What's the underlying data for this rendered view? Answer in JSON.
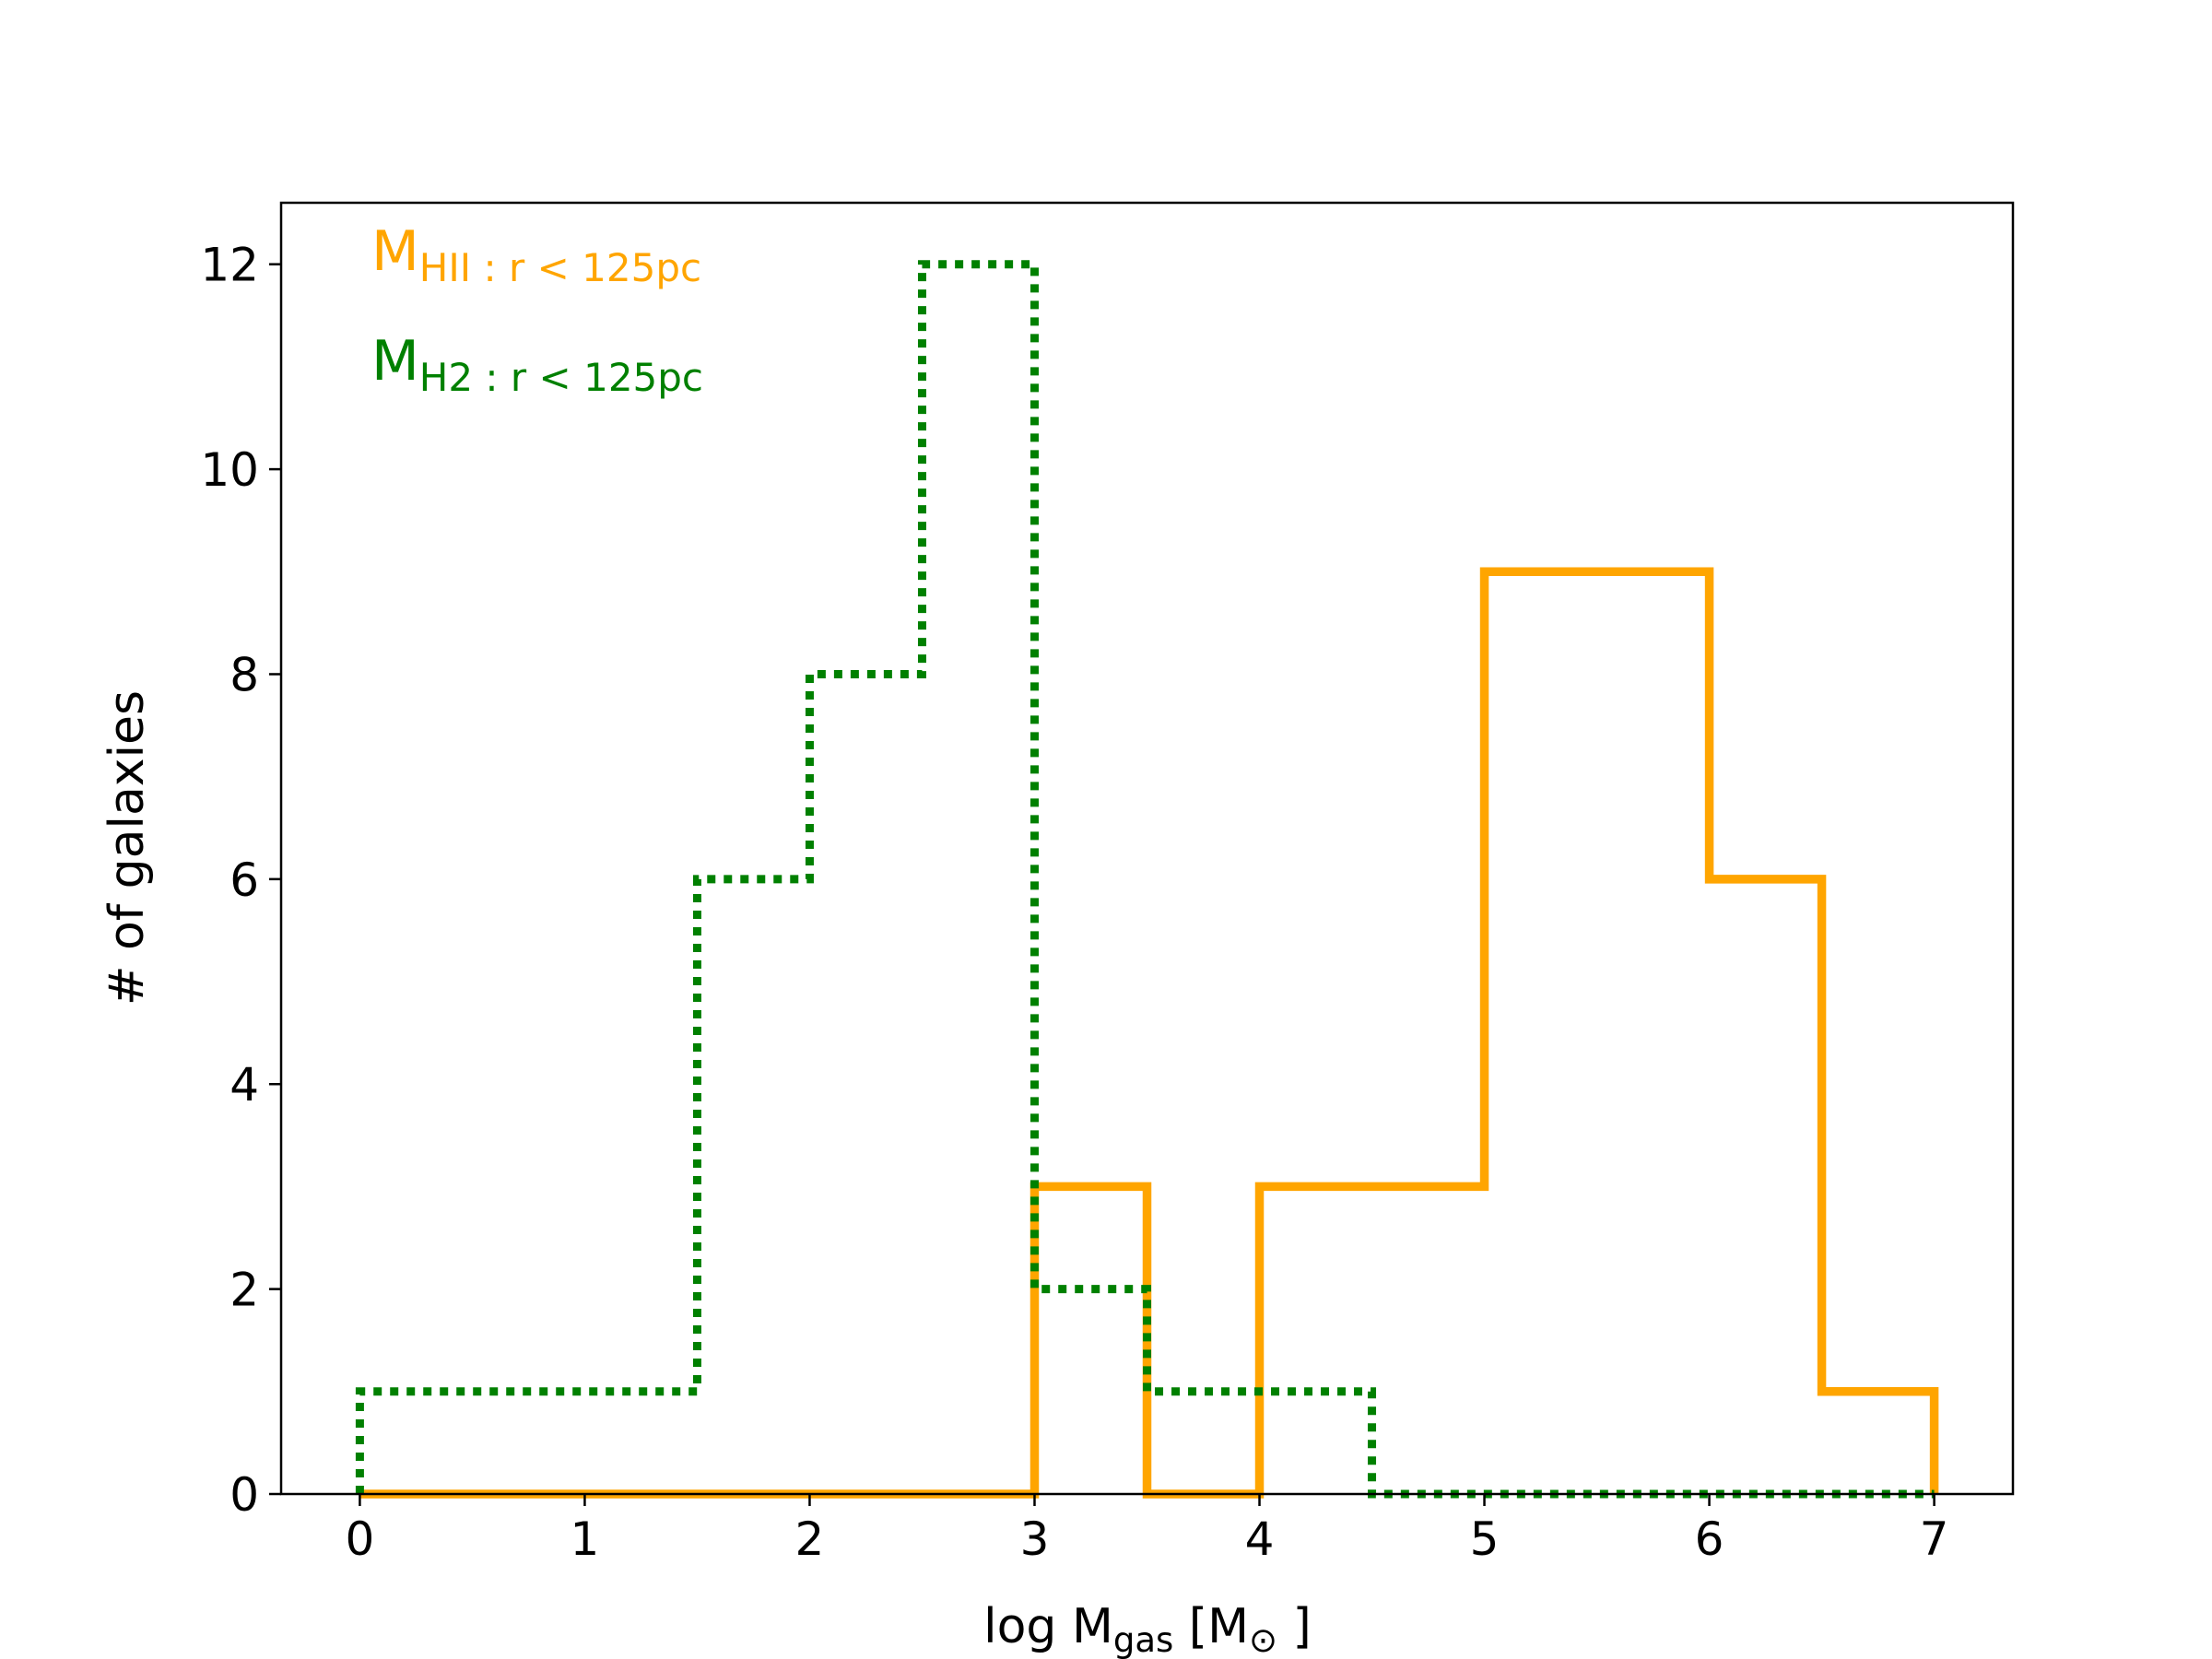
{
  "chart_data": {
    "type": "histogram-step",
    "title": "",
    "xlabel": {
      "main": "log M",
      "sub": "gas",
      "unit_open": " [M",
      "unit_sym": "⊙",
      "unit_close": " ]"
    },
    "ylabel": "# of galaxies",
    "xlim": [
      -0.35,
      7.35
    ],
    "ylim": [
      0,
      12.6
    ],
    "xticks": [
      "0",
      "1",
      "2",
      "3",
      "4",
      "5",
      "6",
      "7"
    ],
    "yticks": [
      "0",
      "2",
      "4",
      "6",
      "8",
      "10",
      "12"
    ],
    "bin_edges": [
      0,
      0.5,
      1,
      1.5,
      2,
      2.5,
      3,
      3.5,
      4,
      4.5,
      5,
      5.5,
      6,
      6.5,
      7
    ],
    "series": [
      {
        "name": "M_HII : r < 125pc",
        "label_main": "M",
        "label_sub": "HII : r < 125pc",
        "color": "#ffa500",
        "style": "solid",
        "values": [
          0,
          0,
          0,
          0,
          0,
          0,
          3,
          0,
          3,
          3,
          9,
          9,
          6,
          1
        ]
      },
      {
        "name": "M_H2 : r < 125pc",
        "label_main": "M",
        "label_sub": "H2 : r < 125pc",
        "color": "#008000",
        "style": "dotted",
        "values": [
          1,
          1,
          1,
          6,
          8,
          12,
          2,
          1,
          1,
          0,
          0,
          0,
          0,
          0
        ]
      }
    ],
    "legend_placement": "top-left",
    "grid": false
  }
}
